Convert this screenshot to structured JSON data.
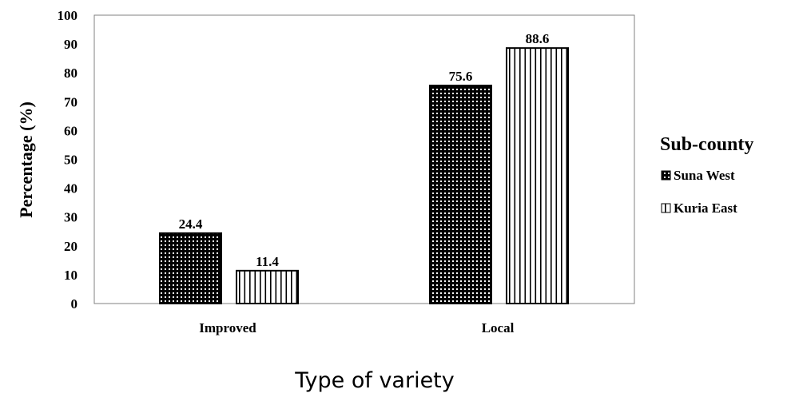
{
  "chart_data": {
    "type": "bar",
    "categories": [
      "Improved",
      "Local"
    ],
    "series": [
      {
        "name": "Suna West",
        "values": [
          24.4,
          75.6
        ],
        "pattern": "dotted-dark"
      },
      {
        "name": "Kuria East",
        "values": [
          11.4,
          88.6
        ],
        "pattern": "vertical-stripes"
      }
    ],
    "data_labels": [
      [
        "24.4",
        "75.6"
      ],
      [
        "11.4",
        "88.6"
      ]
    ],
    "xlabel": "Type of variety",
    "ylabel": "Percentage (%)",
    "ylim": [
      0,
      100
    ],
    "yticks": [
      0,
      10,
      20,
      30,
      40,
      50,
      60,
      70,
      80,
      90,
      100
    ],
    "ytick_labels": [
      "0",
      "10",
      "20",
      "30",
      "40",
      "50",
      "60",
      "70",
      "80",
      "90",
      "100"
    ],
    "grid": false,
    "legend": {
      "title": "Sub-county",
      "placement": "right"
    },
    "colors": {
      "bar_fill_dark": "#000000",
      "bar_fill_light": "#ffffff",
      "axis": "#808080"
    }
  }
}
